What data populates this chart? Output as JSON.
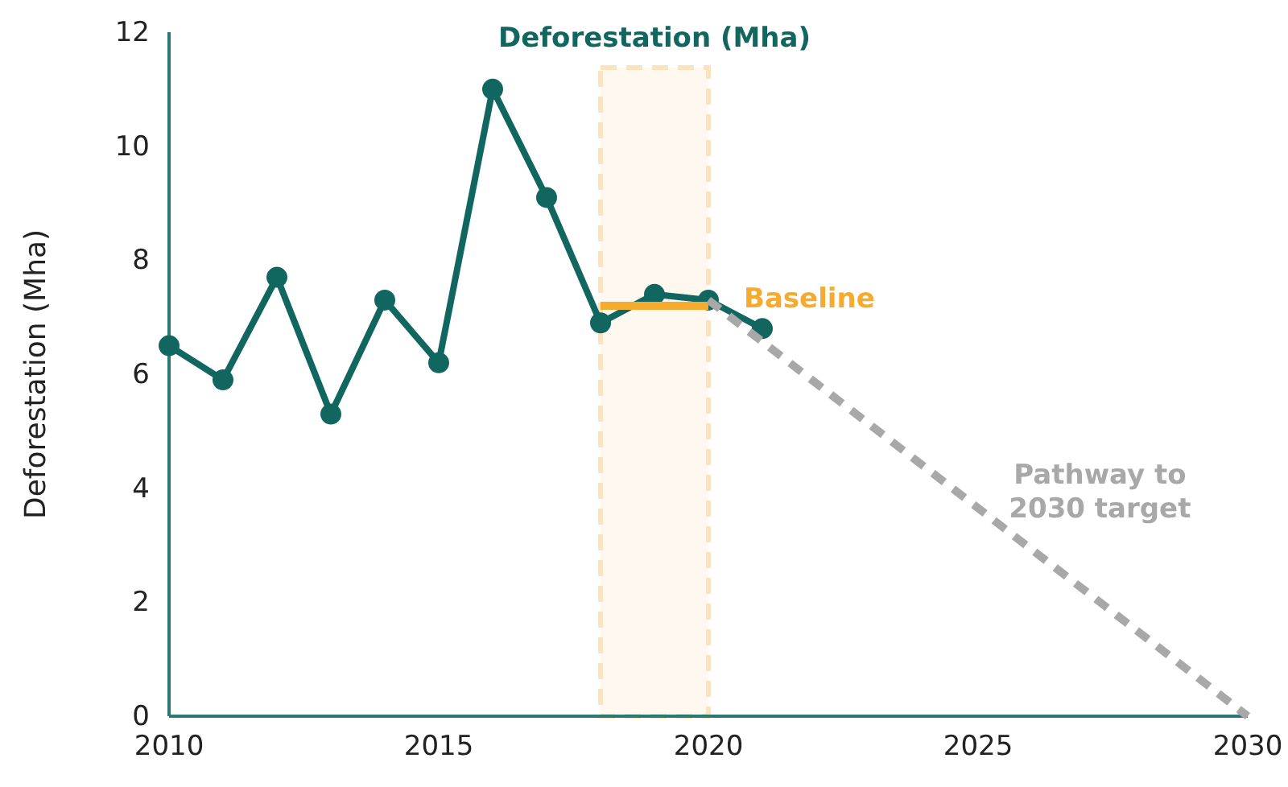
{
  "chart_data": {
    "type": "line",
    "title": "Deforestation (Mha)",
    "ylabel": "Deforestation (Mha)",
    "xlim": [
      2010,
      2030
    ],
    "xticks": [
      2010,
      2015,
      2020,
      2025,
      2030
    ],
    "ylim": [
      0,
      12
    ],
    "yticks": [
      0,
      2,
      4,
      6,
      8,
      10,
      12
    ],
    "grid": false,
    "legend": false,
    "bands": [
      {
        "axis": "x",
        "from": 2018,
        "to": 2020,
        "color": "#fbe3c0"
      }
    ],
    "series": [
      {
        "color": "#11665f",
        "marker": "circle",
        "line_style": "solid",
        "x": [
          2010,
          2011,
          2012,
          2013,
          2014,
          2015,
          2016,
          2017,
          2018,
          2019,
          2020,
          2021
        ],
        "values": [
          6.5,
          5.9,
          7.7,
          5.3,
          7.3,
          6.2,
          11.0,
          9.1,
          6.9,
          7.4,
          7.3,
          6.8
        ]
      },
      {
        "name": "Baseline",
        "color": "#f5ab2e",
        "marker": "none",
        "line_style": "solid",
        "x": [
          2018,
          2020
        ],
        "values": [
          7.2,
          7.2
        ]
      },
      {
        "name": "Pathway to 2030 target",
        "color": "#a8a8a8",
        "marker": "none",
        "line_style": "dashed",
        "x": [
          2020,
          2030
        ],
        "values": [
          7.3,
          0
        ]
      }
    ]
  }
}
